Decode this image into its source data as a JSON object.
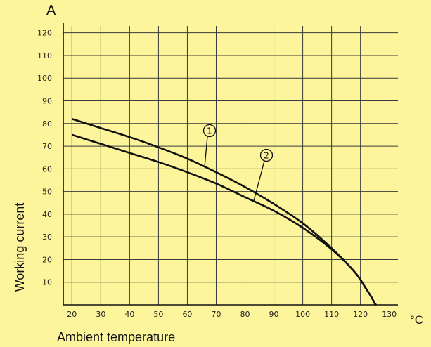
{
  "chart_data": {
    "type": "line",
    "xlabel": "Ambient temperature",
    "ylabel": "Working current",
    "x_unit": "°C",
    "y_unit": "A",
    "xlim": [
      17,
      133
    ],
    "ylim": [
      0,
      123
    ],
    "x_ticks": [
      20,
      30,
      40,
      50,
      60,
      70,
      80,
      90,
      100,
      110,
      120,
      130
    ],
    "y_ticks": [
      10,
      20,
      30,
      40,
      50,
      60,
      70,
      80,
      90,
      100,
      110,
      120
    ],
    "x_tick_labels": [
      "20",
      "30",
      "40",
      "50",
      "60",
      "70",
      "80",
      "90",
      "100",
      "110",
      "120",
      "130"
    ],
    "y_tick_labels": [
      "10",
      "20",
      "30",
      "40",
      "50",
      "60",
      "70",
      "80",
      "90",
      "100",
      "110",
      "120"
    ],
    "grid": true,
    "series": [
      {
        "name": "1",
        "x": [
          20,
          30,
          40,
          50,
          60,
          70,
          80,
          90,
          100,
          110,
          118,
          122,
          124,
          125,
          125.5
        ],
        "y": [
          82,
          78,
          74,
          69.5,
          64.5,
          58.5,
          52,
          44.5,
          36,
          25,
          14.5,
          7,
          3,
          0.5,
          0
        ]
      },
      {
        "name": "2",
        "x": [
          20,
          30,
          40,
          50,
          60,
          70,
          80,
          90,
          100,
          110,
          118,
          122,
          124,
          125,
          125.5
        ],
        "y": [
          75,
          71,
          67,
          63,
          58.5,
          53.5,
          47.5,
          41.5,
          34,
          24.5,
          14.5,
          7,
          3,
          0.5,
          0
        ]
      }
    ]
  }
}
